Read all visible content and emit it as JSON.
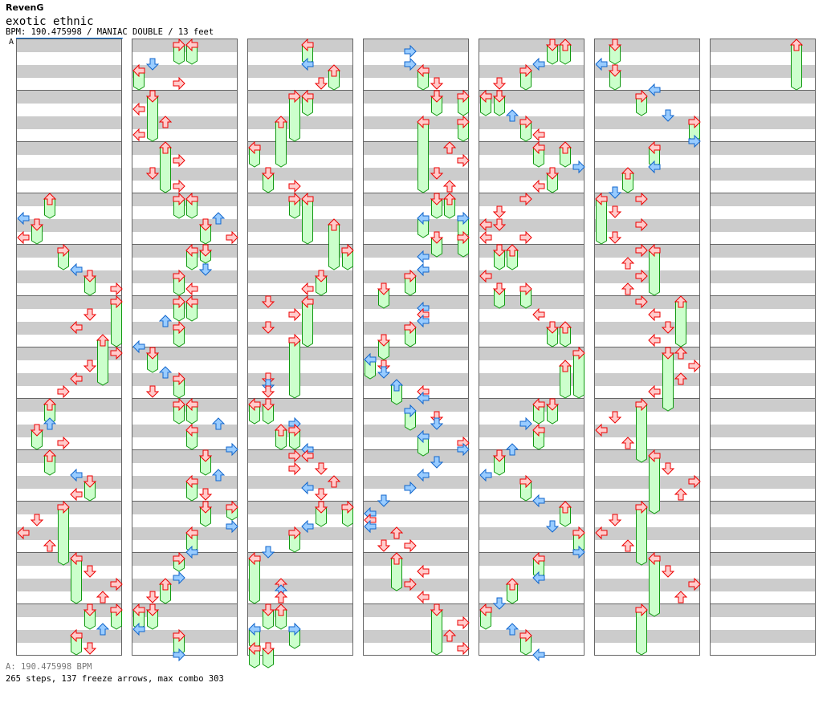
{
  "header": {
    "artist": "RevenG",
    "song": "exotic ethnic",
    "info": "BPM: 190.475998 / MANIAC DOUBLE / 13 feet",
    "bpm_marker": "A"
  },
  "footer": {
    "bpm_line": "A: 190.475998 BPM",
    "stats": "265 steps, 137 freeze arrows, max combo 303"
  },
  "colors": {
    "red_fill": "#ffcccc",
    "red_stroke": "#ee0000",
    "blue_fill": "#99ccff",
    "blue_stroke": "#1166cc",
    "freeze_fill": "#ccffcc",
    "freeze_stroke": "#119911",
    "stripe": "#cccccc"
  },
  "lanes": [
    "left",
    "down",
    "up",
    "right",
    "left",
    "down",
    "up",
    "right"
  ],
  "columns": [
    [
      [
        12,
        2,
        "r",
        1
      ],
      [
        13.5,
        0,
        "b",
        0
      ],
      [
        14,
        1,
        "r",
        1
      ],
      [
        15,
        0,
        "r",
        0
      ],
      [
        16,
        3,
        "r",
        1
      ],
      [
        17.5,
        4,
        "b",
        0
      ],
      [
        18,
        5,
        "r",
        1
      ],
      [
        19,
        7,
        "r",
        0
      ],
      [
        20,
        7,
        "r",
        3
      ],
      [
        21,
        5,
        "r",
        0
      ],
      [
        22,
        4,
        "r",
        0
      ],
      [
        23,
        6,
        "r",
        3
      ],
      [
        24,
        7,
        "r",
        0
      ],
      [
        25,
        5,
        "r",
        0
      ],
      [
        26,
        4,
        "r",
        0
      ],
      [
        27,
        3,
        "r",
        0
      ],
      [
        28,
        2,
        "r",
        1
      ],
      [
        29.5,
        2,
        "b",
        0
      ],
      [
        30,
        1,
        "r",
        1
      ],
      [
        31,
        3,
        "r",
        0
      ],
      [
        32,
        2,
        "r",
        1
      ],
      [
        33.5,
        4,
        "b",
        0
      ],
      [
        34,
        5,
        "r",
        1
      ],
      [
        35,
        4,
        "r",
        0
      ],
      [
        36,
        3,
        "r",
        4
      ],
      [
        37,
        1,
        "r",
        0
      ],
      [
        38,
        0,
        "r",
        0
      ],
      [
        39,
        2,
        "r",
        0
      ],
      [
        40,
        4,
        "r",
        3
      ],
      [
        41,
        5,
        "r",
        0
      ],
      [
        42,
        7,
        "r",
        0
      ],
      [
        43,
        6,
        "r",
        0
      ],
      [
        44,
        5,
        "r",
        1
      ],
      [
        44,
        7,
        "r",
        1
      ],
      [
        45.5,
        6,
        "b",
        0
      ],
      [
        46,
        4,
        "r",
        1
      ],
      [
        47,
        5,
        "r",
        0
      ]
    ],
    [
      [
        0,
        3,
        "r",
        1
      ],
      [
        0,
        4,
        "r",
        1
      ],
      [
        1.5,
        1,
        "b",
        0
      ],
      [
        2,
        0,
        "r",
        1
      ],
      [
        3,
        3,
        "r",
        0
      ],
      [
        4,
        1,
        "r",
        3
      ],
      [
        5,
        0,
        "r",
        0
      ],
      [
        6,
        2,
        "r",
        0
      ],
      [
        7,
        0,
        "r",
        0
      ],
      [
        8,
        2,
        "r",
        3
      ],
      [
        9,
        3,
        "r",
        0
      ],
      [
        10,
        1,
        "r",
        0
      ],
      [
        11,
        3,
        "r",
        0
      ],
      [
        12,
        3,
        "r",
        1
      ],
      [
        12,
        4,
        "r",
        1
      ],
      [
        13.5,
        6,
        "b",
        0
      ],
      [
        14,
        5,
        "r",
        1
      ],
      [
        15,
        7,
        "r",
        0
      ],
      [
        16,
        4,
        "r",
        1
      ],
      [
        16,
        5,
        "r",
        0.5
      ],
      [
        17.5,
        5,
        "b",
        0
      ],
      [
        18,
        3,
        "r",
        1
      ],
      [
        19,
        4,
        "r",
        0
      ],
      [
        20,
        3,
        "r",
        1
      ],
      [
        20,
        4,
        "r",
        1
      ],
      [
        21.5,
        2,
        "b",
        0
      ],
      [
        22,
        3,
        "r",
        1
      ],
      [
        23.5,
        0,
        "b",
        0
      ],
      [
        24,
        1,
        "r",
        1
      ],
      [
        25.5,
        2,
        "b",
        0
      ],
      [
        26,
        3,
        "r",
        1
      ],
      [
        27,
        1,
        "r",
        0
      ],
      [
        28,
        3,
        "r",
        1
      ],
      [
        28,
        4,
        "r",
        1
      ],
      [
        29.5,
        6,
        "b",
        0
      ],
      [
        30,
        4,
        "r",
        1
      ],
      [
        31.5,
        7,
        "b",
        0
      ],
      [
        32,
        5,
        "r",
        1
      ],
      [
        33.5,
        6,
        "b",
        0
      ],
      [
        34,
        4,
        "r",
        1
      ],
      [
        35,
        5,
        "r",
        0
      ],
      [
        36,
        5,
        "r",
        1
      ],
      [
        36,
        7,
        "r",
        0.5
      ],
      [
        37.5,
        7,
        "b",
        0
      ],
      [
        38,
        4,
        "r",
        1
      ],
      [
        39.5,
        4,
        "b",
        0
      ],
      [
        40,
        3,
        "r",
        0.5
      ],
      [
        41.5,
        3,
        "b",
        0
      ],
      [
        42,
        2,
        "r",
        1
      ],
      [
        43,
        1,
        "r",
        0
      ],
      [
        44,
        0,
        "r",
        1
      ],
      [
        44,
        1,
        "r",
        1
      ],
      [
        45.5,
        0,
        "b",
        0
      ],
      [
        46,
        3,
        "r",
        1
      ],
      [
        47.5,
        3,
        "b",
        0
      ]
    ],
    [
      [
        0,
        4,
        "r",
        1
      ],
      [
        1.5,
        4,
        "b",
        0
      ],
      [
        2,
        6,
        "r",
        1
      ],
      [
        3,
        5,
        "r",
        0
      ],
      [
        4,
        3,
        "r",
        3
      ],
      [
        4,
        4,
        "r",
        1
      ],
      [
        6,
        2,
        "r",
        3
      ],
      [
        8,
        0,
        "r",
        1
      ],
      [
        10,
        1,
        "r",
        1
      ],
      [
        11,
        3,
        "r",
        0
      ],
      [
        12,
        3,
        "r",
        1
      ],
      [
        12,
        4,
        "r",
        3
      ],
      [
        14,
        6,
        "r",
        3
      ],
      [
        16,
        7,
        "r",
        1
      ],
      [
        18,
        5,
        "r",
        1
      ],
      [
        19,
        4,
        "r",
        0
      ],
      [
        20,
        1,
        "r",
        0
      ],
      [
        20,
        4,
        "r",
        3
      ],
      [
        21,
        3,
        "r",
        0
      ],
      [
        22,
        1,
        "r",
        0
      ],
      [
        23,
        3,
        "r",
        4
      ],
      [
        26,
        1,
        "r",
        0
      ],
      [
        26.5,
        1,
        "b",
        0
      ],
      [
        27,
        1,
        "r",
        0
      ],
      [
        28,
        0,
        "r",
        1
      ],
      [
        28,
        1,
        "r",
        1
      ],
      [
        29.5,
        3,
        "b",
        0
      ],
      [
        30,
        2,
        "r",
        1
      ],
      [
        30,
        3,
        "r",
        1
      ],
      [
        31.5,
        4,
        "b",
        0
      ],
      [
        32,
        3,
        "r",
        0
      ],
      [
        32,
        4,
        "r",
        0
      ],
      [
        33,
        3,
        "r",
        0
      ],
      [
        33,
        5,
        "r",
        0
      ],
      [
        34,
        6,
        "r",
        0
      ],
      [
        34.5,
        4,
        "b",
        0
      ],
      [
        35,
        5,
        "r",
        0
      ],
      [
        36,
        5,
        "r",
        1
      ],
      [
        36,
        7,
        "r",
        1
      ],
      [
        37.5,
        4,
        "b",
        0
      ],
      [
        38,
        3,
        "r",
        1
      ],
      [
        39.5,
        1,
        "b",
        0
      ],
      [
        40,
        0,
        "r",
        3
      ],
      [
        42,
        2,
        "r",
        0
      ],
      [
        42.5,
        2,
        "b",
        0
      ],
      [
        43,
        2,
        "r",
        0
      ],
      [
        44,
        1,
        "r",
        1
      ],
      [
        44,
        2,
        "r",
        1
      ],
      [
        45.5,
        0,
        "b",
        1
      ],
      [
        45.5,
        3,
        "b",
        1
      ],
      [
        47,
        0,
        "r",
        1
      ],
      [
        47,
        1,
        "r",
        1
      ]
    ],
    [
      [
        0.5,
        3,
        "b",
        0
      ],
      [
        1.5,
        3,
        "b",
        0
      ],
      [
        2,
        4,
        "r",
        1
      ],
      [
        3,
        5,
        "r",
        0
      ],
      [
        4,
        5,
        "r",
        1
      ],
      [
        4,
        7,
        "r",
        1
      ],
      [
        6,
        4,
        "r",
        5
      ],
      [
        6,
        7,
        "r",
        1
      ],
      [
        8,
        6,
        "r",
        0
      ],
      [
        9,
        7,
        "r",
        0
      ],
      [
        10,
        5,
        "r",
        0
      ],
      [
        11,
        6,
        "r",
        0
      ],
      [
        12,
        5,
        "r",
        1
      ],
      [
        12,
        6,
        "r",
        1
      ],
      [
        13.5,
        4,
        "b",
        1
      ],
      [
        13.5,
        7,
        "b",
        1
      ],
      [
        15,
        5,
        "r",
        1
      ],
      [
        15,
        7,
        "r",
        1
      ],
      [
        16.5,
        4,
        "b",
        0
      ],
      [
        17.5,
        4,
        "b",
        0
      ],
      [
        18,
        3,
        "r",
        1
      ],
      [
        19,
        1,
        "r",
        1
      ],
      [
        20.5,
        4,
        "b",
        0
      ],
      [
        21,
        4,
        "r",
        0
      ],
      [
        21.5,
        4,
        "b",
        0
      ],
      [
        22,
        3,
        "r",
        1
      ],
      [
        23,
        1,
        "r",
        1
      ],
      [
        24.5,
        0,
        "b",
        1
      ],
      [
        25,
        1,
        "r",
        0
      ],
      [
        25.5,
        1,
        "b",
        0
      ],
      [
        26.5,
        2,
        "b",
        1
      ],
      [
        27,
        4,
        "r",
        0
      ],
      [
        27.5,
        4,
        "b",
        0
      ],
      [
        28.5,
        3,
        "b",
        1
      ],
      [
        29,
        5,
        "r",
        0
      ],
      [
        29.5,
        5,
        "b",
        0
      ],
      [
        30.5,
        4,
        "b",
        1
      ],
      [
        31,
        7,
        "r",
        0
      ],
      [
        31.5,
        7,
        "b",
        0
      ],
      [
        32.5,
        5,
        "b",
        0
      ],
      [
        33.5,
        4,
        "b",
        0
      ],
      [
        34.5,
        3,
        "b",
        0
      ],
      [
        35.5,
        1,
        "b",
        0
      ],
      [
        36.5,
        0,
        "b",
        0
      ],
      [
        37,
        0,
        "r",
        0
      ],
      [
        37.5,
        0,
        "b",
        0
      ],
      [
        38,
        2,
        "r",
        0
      ],
      [
        39,
        1,
        "r",
        0
      ],
      [
        39,
        3,
        "r",
        0
      ],
      [
        40,
        2,
        "r",
        2
      ],
      [
        41,
        4,
        "r",
        0
      ],
      [
        42,
        3,
        "r",
        0
      ],
      [
        43,
        4,
        "r",
        0
      ],
      [
        44,
        5,
        "r",
        3
      ],
      [
        45,
        7,
        "r",
        0
      ],
      [
        46,
        6,
        "r",
        0
      ],
      [
        47,
        7,
        "r",
        0
      ]
    ],
    [
      [
        0,
        5,
        "r",
        1
      ],
      [
        0,
        6,
        "r",
        1
      ],
      [
        1.5,
        4,
        "b",
        0
      ],
      [
        2,
        3,
        "r",
        1
      ],
      [
        3,
        1,
        "r",
        0
      ],
      [
        4,
        0,
        "r",
        1
      ],
      [
        4,
        1,
        "r",
        1
      ],
      [
        5.5,
        2,
        "b",
        0
      ],
      [
        6,
        3,
        "r",
        1
      ],
      [
        7,
        4,
        "r",
        0
      ],
      [
        8,
        4,
        "r",
        1
      ],
      [
        8,
        6,
        "r",
        1
      ],
      [
        9.5,
        7,
        "b",
        0
      ],
      [
        10,
        5,
        "r",
        1
      ],
      [
        11,
        4,
        "r",
        0
      ],
      [
        12,
        3,
        "r",
        0
      ],
      [
        13,
        1,
        "r",
        0
      ],
      [
        14,
        0,
        "r",
        0
      ],
      [
        14,
        1,
        "r",
        0
      ],
      [
        15,
        0,
        "r",
        0
      ],
      [
        15,
        3,
        "r",
        0
      ],
      [
        16,
        1,
        "r",
        1
      ],
      [
        16,
        2,
        "r",
        1
      ],
      [
        18,
        0,
        "r",
        0
      ],
      [
        19,
        1,
        "r",
        1
      ],
      [
        19,
        3,
        "r",
        1
      ],
      [
        21,
        4,
        "r",
        0
      ],
      [
        22,
        5,
        "r",
        1
      ],
      [
        22,
        6,
        "r",
        1
      ],
      [
        24,
        7,
        "r",
        3
      ],
      [
        25,
        6,
        "r",
        2
      ],
      [
        28,
        4,
        "r",
        1
      ],
      [
        28,
        5,
        "r",
        1
      ],
      [
        29.5,
        3,
        "b",
        0
      ],
      [
        30,
        4,
        "r",
        1
      ],
      [
        31.5,
        2,
        "b",
        0
      ],
      [
        32,
        1,
        "r",
        1
      ],
      [
        33.5,
        0,
        "b",
        0
      ],
      [
        34,
        3,
        "r",
        1
      ],
      [
        35.5,
        4,
        "b",
        0
      ],
      [
        36,
        6,
        "r",
        1
      ],
      [
        37.5,
        5,
        "b",
        0
      ],
      [
        38,
        7,
        "r",
        1
      ],
      [
        39.5,
        7,
        "b",
        0
      ],
      [
        40,
        4,
        "r",
        1
      ],
      [
        41.5,
        4,
        "b",
        0
      ],
      [
        42,
        2,
        "r",
        1
      ],
      [
        43.5,
        1,
        "b",
        0
      ],
      [
        44,
        0,
        "r",
        1
      ],
      [
        45.5,
        2,
        "b",
        0
      ],
      [
        46,
        3,
        "r",
        1
      ],
      [
        47.5,
        4,
        "b",
        0
      ]
    ],
    [
      [
        0,
        1,
        "r",
        1
      ],
      [
        1.5,
        0,
        "b",
        0
      ],
      [
        2,
        1,
        "r",
        1
      ],
      [
        3.5,
        4,
        "b",
        0
      ],
      [
        4,
        3,
        "r",
        1
      ],
      [
        5.5,
        5,
        "b",
        0
      ],
      [
        6,
        7,
        "r",
        1
      ],
      [
        7.5,
        7,
        "b",
        0
      ],
      [
        8,
        4,
        "r",
        1
      ],
      [
        9.5,
        4,
        "b",
        0
      ],
      [
        10,
        2,
        "r",
        1
      ],
      [
        11.5,
        1,
        "b",
        0
      ],
      [
        12,
        0,
        "r",
        3
      ],
      [
        12,
        3,
        "r",
        0
      ],
      [
        13,
        1,
        "r",
        0
      ],
      [
        14,
        3,
        "r",
        0
      ],
      [
        15,
        1,
        "r",
        0
      ],
      [
        16,
        3,
        "r",
        0
      ],
      [
        16,
        4,
        "r",
        3
      ],
      [
        17,
        2,
        "r",
        0
      ],
      [
        18,
        3,
        "r",
        0
      ],
      [
        19,
        2,
        "r",
        0
      ],
      [
        20,
        3,
        "r",
        0
      ],
      [
        20,
        6,
        "r",
        3
      ],
      [
        21,
        4,
        "r",
        0
      ],
      [
        22,
        5,
        "r",
        0
      ],
      [
        23,
        4,
        "r",
        0
      ],
      [
        24,
        5,
        "r",
        4
      ],
      [
        24,
        6,
        "r",
        0
      ],
      [
        25,
        7,
        "r",
        0
      ],
      [
        26,
        6,
        "r",
        0
      ],
      [
        27,
        4,
        "r",
        0
      ],
      [
        28,
        3,
        "r",
        4
      ],
      [
        29,
        1,
        "r",
        0
      ],
      [
        30,
        0,
        "r",
        0
      ],
      [
        31,
        2,
        "r",
        0
      ],
      [
        32,
        4,
        "r",
        4
      ],
      [
        33,
        5,
        "r",
        0
      ],
      [
        34,
        7,
        "r",
        0
      ],
      [
        35,
        6,
        "r",
        0
      ],
      [
        36,
        3,
        "r",
        4
      ],
      [
        37,
        1,
        "r",
        0
      ],
      [
        38,
        0,
        "r",
        0
      ],
      [
        39,
        2,
        "r",
        0
      ],
      [
        40,
        4,
        "r",
        4
      ],
      [
        41,
        5,
        "r",
        0
      ],
      [
        42,
        7,
        "r",
        0
      ],
      [
        43,
        6,
        "r",
        0
      ],
      [
        44,
        3,
        "r",
        3
      ]
    ],
    [
      [
        0,
        6,
        "r",
        3
      ]
    ]
  ]
}
